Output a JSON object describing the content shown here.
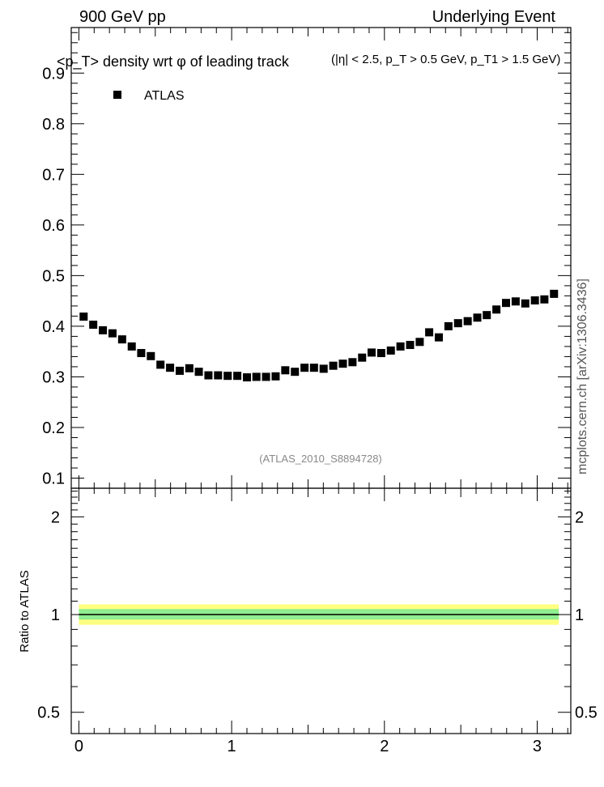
{
  "header": {
    "left": "900 GeV pp",
    "right": "Underlying Event"
  },
  "side_label": "mcplots.cern.ch [arXiv:1306.3436]",
  "chart_data": [
    {
      "type": "scatter",
      "title": "<p_T> density wrt φ of leading track",
      "subtitle": "(|η| < 2.5, p_T > 0.5 GeV, p_T1 > 1.5 GeV)",
      "xlabel": "",
      "ylabel": "",
      "xlim": [
        -0.05,
        3.22
      ],
      "ylim": [
        0.08,
        0.99
      ],
      "yticks": [
        0.1,
        0.2,
        0.3,
        0.4,
        0.5,
        0.6,
        0.7,
        0.8,
        0.9
      ],
      "ytick_labels": [
        "0.1",
        "0.2",
        "0.3",
        "0.4",
        "0.5",
        "0.6",
        "0.7",
        "0.8",
        "0.9"
      ],
      "legend": {
        "placement": "top-left",
        "entries": [
          "ATLAS"
        ]
      },
      "annotation": "(ATLAS_2010_S8894728)",
      "series": [
        {
          "name": "ATLAS",
          "marker": "square",
          "color": "#000000",
          "x": [
            0.031,
            0.094,
            0.157,
            0.22,
            0.283,
            0.346,
            0.408,
            0.471,
            0.534,
            0.597,
            0.66,
            0.723,
            0.785,
            0.848,
            0.911,
            0.974,
            1.037,
            1.1,
            1.162,
            1.225,
            1.288,
            1.351,
            1.414,
            1.477,
            1.539,
            1.602,
            1.665,
            1.728,
            1.791,
            1.854,
            1.916,
            1.979,
            2.042,
            2.105,
            2.168,
            2.231,
            2.293,
            2.356,
            2.419,
            2.482,
            2.545,
            2.608,
            2.67,
            2.733,
            2.796,
            2.859,
            2.922,
            2.985,
            3.047,
            3.11
          ],
          "y": [
            0.419,
            0.403,
            0.392,
            0.386,
            0.374,
            0.36,
            0.347,
            0.341,
            0.324,
            0.318,
            0.312,
            0.317,
            0.31,
            0.303,
            0.303,
            0.302,
            0.302,
            0.299,
            0.3,
            0.3,
            0.301,
            0.313,
            0.31,
            0.318,
            0.318,
            0.316,
            0.322,
            0.326,
            0.329,
            0.338,
            0.348,
            0.347,
            0.352,
            0.36,
            0.363,
            0.369,
            0.388,
            0.378,
            0.4,
            0.406,
            0.41,
            0.417,
            0.422,
            0.433,
            0.446,
            0.449,
            0.445,
            0.451,
            0.453,
            0.464
          ]
        }
      ]
    },
    {
      "type": "line",
      "xlabel": "",
      "ylabel": "Ratio to ATLAS",
      "xlim": [
        -0.05,
        3.22
      ],
      "ylim": [
        0.43,
        2.45
      ],
      "log_y": true,
      "xticks": [
        0,
        1,
        2,
        3
      ],
      "xtick_labels": [
        "0",
        "1",
        "2",
        "3"
      ],
      "yticks": [
        0.5,
        1,
        2
      ],
      "ytick_labels": [
        "0.5",
        "1",
        "2"
      ],
      "reference": {
        "value": 1.0,
        "x_range": [
          0,
          3.1416
        ]
      },
      "bands": [
        {
          "lower": 0.93,
          "upper": 1.075,
          "color": "#ffff80"
        },
        {
          "lower": 0.965,
          "upper": 1.04,
          "color": "#90ee90"
        }
      ]
    }
  ]
}
